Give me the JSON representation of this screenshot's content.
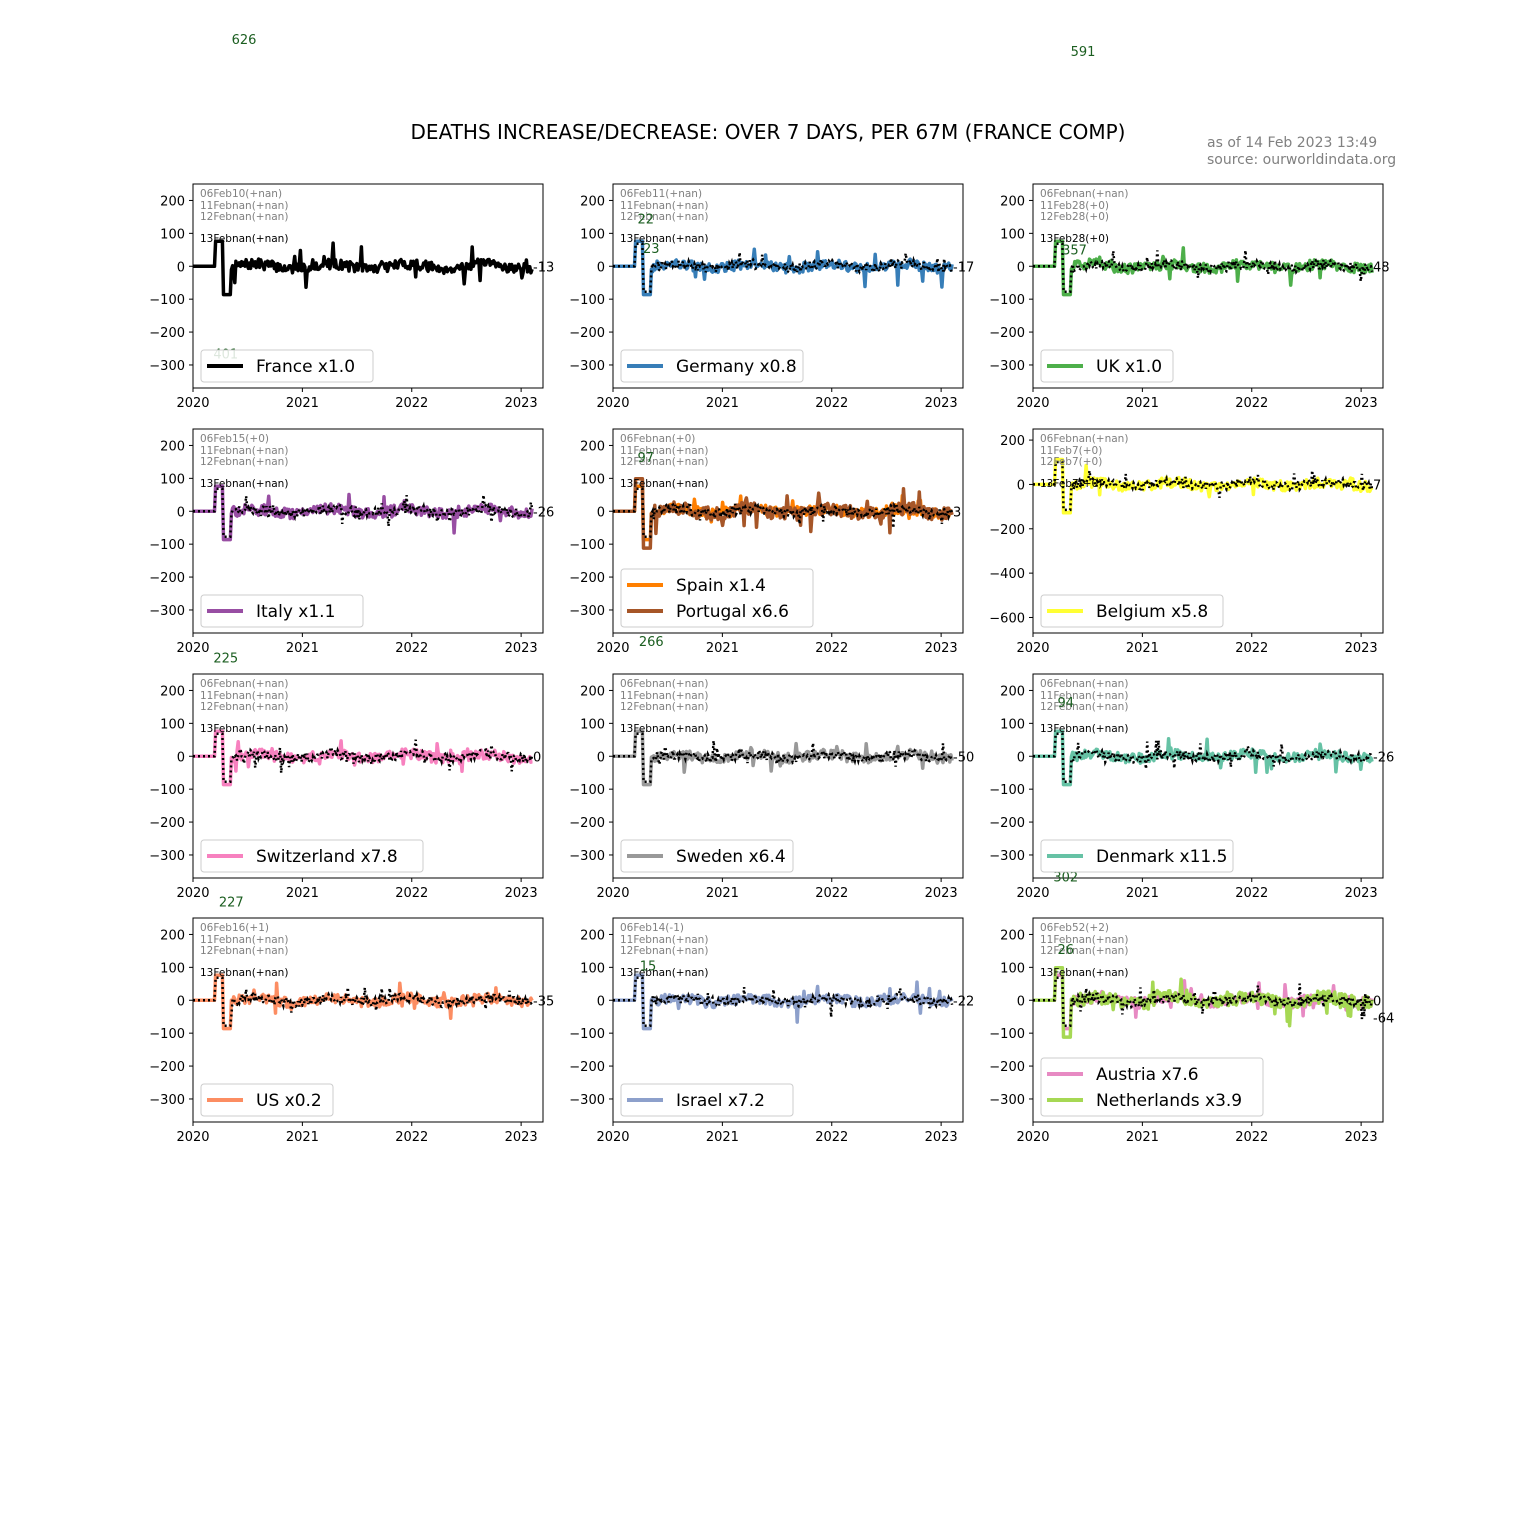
{
  "figure": {
    "title": "DEATHS INCREASE/DECREASE: OVER 7 DAYS, PER 67M (FRANCE COMP)",
    "asof": "as of 14 Feb 2023 13:49",
    "source": "source: ourworldindata.org",
    "peaks": [
      {
        "text": "626",
        "color": "#1b5e20"
      },
      {
        "text": "591",
        "color": "#1b5e20"
      }
    ]
  },
  "colors": {
    "France": "#000000",
    "Germany": "#377eb8",
    "UK": "#4daf4a",
    "Italy": "#984ea3",
    "Spain": "#ff7f00",
    "Portugal": "#a65628",
    "Belgium": "#ffff33",
    "Switzerland": "#f781bf",
    "Sweden": "#999999",
    "Denmark": "#66c2a5",
    "US": "#fc8d62",
    "Israel": "#8da0cb",
    "Austria": "#e78ac3",
    "Netherlands": "#a6d854",
    "reference": "#000000",
    "note_gray": "#808080",
    "note_black": "#000000",
    "peak_green": "#1b5e20"
  },
  "chart_data": [
    {
      "type": "line",
      "country": "France",
      "xlim": [
        2020,
        2023.2
      ],
      "ylim": [
        -370,
        250
      ],
      "xticks": [
        "2020",
        "2021",
        "2022",
        "2023"
      ],
      "yticks": [
        "200",
        "100",
        "0",
        "−100",
        "−200",
        "−300"
      ],
      "series": [
        {
          "name": "France x1.0",
          "color": "#000000"
        }
      ],
      "reference": false,
      "notes": [
        "06Feb10(+nan)",
        "11Febnan(+nan)",
        "12Febnan(+nan)",
        "13Febnan(+nan)"
      ],
      "end_label": "-13",
      "extra_labels": [
        {
          "text": "401",
          "x": 2020.3,
          "y": -280,
          "color": "#1b5e20"
        }
      ]
    },
    {
      "type": "line",
      "country": "Germany",
      "xlim": [
        2020,
        2023.2
      ],
      "ylim": [
        -370,
        250
      ],
      "xticks": [
        "2020",
        "2021",
        "2022",
        "2023"
      ],
      "yticks": [
        "200",
        "100",
        "0",
        "−100",
        "−200",
        "−300"
      ],
      "series": [
        {
          "name": "Germany x0.8",
          "color": "#377eb8"
        }
      ],
      "reference": true,
      "notes": [
        "06Feb11(+nan)",
        "11Febnan(+nan)",
        "12Febnan(+nan)",
        "13Febnan(+nan)"
      ],
      "end_label": "-17",
      "extra_labels": [
        {
          "text": "22",
          "x": 2020.3,
          "y": 130,
          "color": "#1b5e20"
        },
        {
          "text": "23",
          "x": 2020.35,
          "y": 40,
          "color": "#1b5e20"
        }
      ]
    },
    {
      "type": "line",
      "country": "UK",
      "xlim": [
        2020,
        2023.2
      ],
      "ylim": [
        -370,
        250
      ],
      "xticks": [
        "2020",
        "2021",
        "2022",
        "2023"
      ],
      "yticks": [
        "200",
        "100",
        "0",
        "−100",
        "−200",
        "−300"
      ],
      "series": [
        {
          "name": "UK x1.0",
          "color": "#4daf4a"
        }
      ],
      "reference": true,
      "notes": [
        "06Febnan(+nan)",
        "11Feb28(+0)",
        "12Feb28(+0)",
        "13Feb28(+0)"
      ],
      "end_label": "48",
      "extra_labels": [
        {
          "text": "357",
          "x": 2020.38,
          "y": 35,
          "color": "#1b5e20"
        }
      ]
    },
    {
      "type": "line",
      "country": "Italy",
      "xlim": [
        2020,
        2023.2
      ],
      "ylim": [
        -370,
        250
      ],
      "xticks": [
        "2020",
        "2021",
        "2022",
        "2023"
      ],
      "yticks": [
        "200",
        "100",
        "0",
        "−100",
        "−200",
        "−300"
      ],
      "series": [
        {
          "name": "Italy x1.1",
          "color": "#984ea3"
        }
      ],
      "reference": true,
      "notes": [
        "06Feb15(+0)",
        "11Febnan(+nan)",
        "12Febnan(+nan)",
        "13Febnan(+nan)"
      ],
      "end_label": "-26",
      "extra_labels": []
    },
    {
      "type": "line",
      "country": "Spain/Portugal",
      "xlim": [
        2020,
        2023.2
      ],
      "ylim": [
        -370,
        250
      ],
      "xticks": [
        "2020",
        "2021",
        "2022",
        "2023"
      ],
      "yticks": [
        "200",
        "100",
        "0",
        "−100",
        "−200",
        "−300"
      ],
      "series": [
        {
          "name": "Spain x1.4",
          "color": "#ff7f00"
        },
        {
          "name": "Portugal x6.6",
          "color": "#a65628"
        }
      ],
      "reference": true,
      "notes": [
        "06Febnan(+0)",
        "11Febnan(+nan)",
        "12Febnan(+nan)",
        "13Febnan(+nan)"
      ],
      "end_label": "3",
      "extra_labels": [
        {
          "text": "97",
          "x": 2020.3,
          "y": 150,
          "color": "#1b5e20"
        },
        {
          "text": "266",
          "x": 2020.35,
          "y": -410,
          "color": "#1b5e20"
        }
      ]
    },
    {
      "type": "line",
      "country": "Belgium",
      "xlim": [
        2020,
        2023.2
      ],
      "ylim": [
        -670,
        250
      ],
      "xticks": [
        "2020",
        "2021",
        "2022",
        "2023"
      ],
      "yticks": [
        "200",
        "0",
        "−200",
        "−400",
        "−600"
      ],
      "series": [
        {
          "name": "Belgium x5.8",
          "color": "#ffff33"
        }
      ],
      "reference": true,
      "notes": [
        "06Febnan(+nan)",
        "11Feb7(+0)",
        "12Feb7(+0)",
        "13Feb7(+0)"
      ],
      "end_label": "7",
      "extra_labels": []
    },
    {
      "type": "line",
      "country": "Switzerland",
      "xlim": [
        2020,
        2023.2
      ],
      "ylim": [
        -370,
        250
      ],
      "xticks": [
        "2020",
        "2021",
        "2022",
        "2023"
      ],
      "yticks": [
        "200",
        "100",
        "0",
        "−100",
        "−200",
        "−300"
      ],
      "series": [
        {
          "name": "Switzerland x7.8",
          "color": "#f781bf"
        }
      ],
      "reference": true,
      "notes": [
        "06Febnan(+nan)",
        "11Febnan(+nan)",
        "12Febnan(+nan)",
        "13Febnan(+nan)"
      ],
      "end_label": "0",
      "extra_labels": [
        {
          "text": "225",
          "x": 2020.3,
          "y": 285,
          "color": "#1b5e20"
        }
      ]
    },
    {
      "type": "line",
      "country": "Sweden",
      "xlim": [
        2020,
        2023.2
      ],
      "ylim": [
        -370,
        250
      ],
      "xticks": [
        "2020",
        "2021",
        "2022",
        "2023"
      ],
      "yticks": [
        "200",
        "100",
        "0",
        "−100",
        "−200",
        "−300"
      ],
      "series": [
        {
          "name": "Sweden x6.4",
          "color": "#999999"
        }
      ],
      "reference": true,
      "notes": [
        "06Febnan(+nan)",
        "11Febnan(+nan)",
        "12Febnan(+nan)",
        "13Febnan(+nan)"
      ],
      "end_label": "-50",
      "extra_labels": []
    },
    {
      "type": "line",
      "country": "Denmark",
      "xlim": [
        2020,
        2023.2
      ],
      "ylim": [
        -370,
        250
      ],
      "xticks": [
        "2020",
        "2021",
        "2022",
        "2023"
      ],
      "yticks": [
        "200",
        "100",
        "0",
        "−100",
        "−200",
        "−300"
      ],
      "series": [
        {
          "name": "Denmark x11.5",
          "color": "#66c2a5"
        }
      ],
      "reference": true,
      "notes": [
        "06Febnan(+nan)",
        "11Febnan(+nan)",
        "12Febnan(+nan)",
        "13Febnan(+nan)"
      ],
      "end_label": "-26",
      "extra_labels": [
        {
          "text": "94",
          "x": 2020.3,
          "y": 150,
          "color": "#1b5e20"
        },
        {
          "text": "302",
          "x": 2020.3,
          "y": -380,
          "color": "#1b5e20"
        }
      ]
    },
    {
      "type": "line",
      "country": "US",
      "xlim": [
        2020,
        2023.2
      ],
      "ylim": [
        -370,
        250
      ],
      "xticks": [
        "2020",
        "2021",
        "2022",
        "2023"
      ],
      "yticks": [
        "200",
        "100",
        "0",
        "−100",
        "−200",
        "−300"
      ],
      "series": [
        {
          "name": "US x0.2",
          "color": "#fc8d62"
        }
      ],
      "reference": true,
      "notes": [
        "06Feb16(+1)",
        "11Febnan(+nan)",
        "12Febnan(+nan)",
        "13Febnan(+nan)"
      ],
      "end_label": "-35",
      "extra_labels": [
        {
          "text": "227",
          "x": 2020.35,
          "y": 285,
          "color": "#1b5e20"
        }
      ]
    },
    {
      "type": "line",
      "country": "Israel",
      "xlim": [
        2020,
        2023.2
      ],
      "ylim": [
        -370,
        250
      ],
      "xticks": [
        "2020",
        "2021",
        "2022",
        "2023"
      ],
      "yticks": [
        "200",
        "100",
        "0",
        "−100",
        "−200",
        "−300"
      ],
      "series": [
        {
          "name": "Israel x7.2",
          "color": "#8da0cb"
        }
      ],
      "reference": true,
      "notes": [
        "06Feb14(-1)",
        "11Febnan(+nan)",
        "12Febnan(+nan)",
        "13Febnan(+nan)"
      ],
      "end_label": "-22",
      "extra_labels": [
        {
          "text": "15",
          "x": 2020.32,
          "y": 90,
          "color": "#1b5e20"
        }
      ]
    },
    {
      "type": "line",
      "country": "Austria/Netherlands",
      "xlim": [
        2020,
        2023.2
      ],
      "ylim": [
        -370,
        250
      ],
      "xticks": [
        "2020",
        "2021",
        "2022",
        "2023"
      ],
      "yticks": [
        "200",
        "100",
        "0",
        "−100",
        "−200",
        "−300"
      ],
      "series": [
        {
          "name": "Austria x7.6",
          "color": "#e78ac3"
        },
        {
          "name": "Netherlands x3.9",
          "color": "#a6d854"
        }
      ],
      "reference": true,
      "notes": [
        "06Feb52(+2)",
        "11Febnan(+nan)",
        "12Febnan(+nan)",
        "13Febnan(+nan)"
      ],
      "end_label": "0",
      "end_label2": "-64",
      "extra_labels": [
        {
          "text": "26",
          "x": 2020.3,
          "y": 140,
          "color": "#1b5e20"
        }
      ]
    }
  ]
}
